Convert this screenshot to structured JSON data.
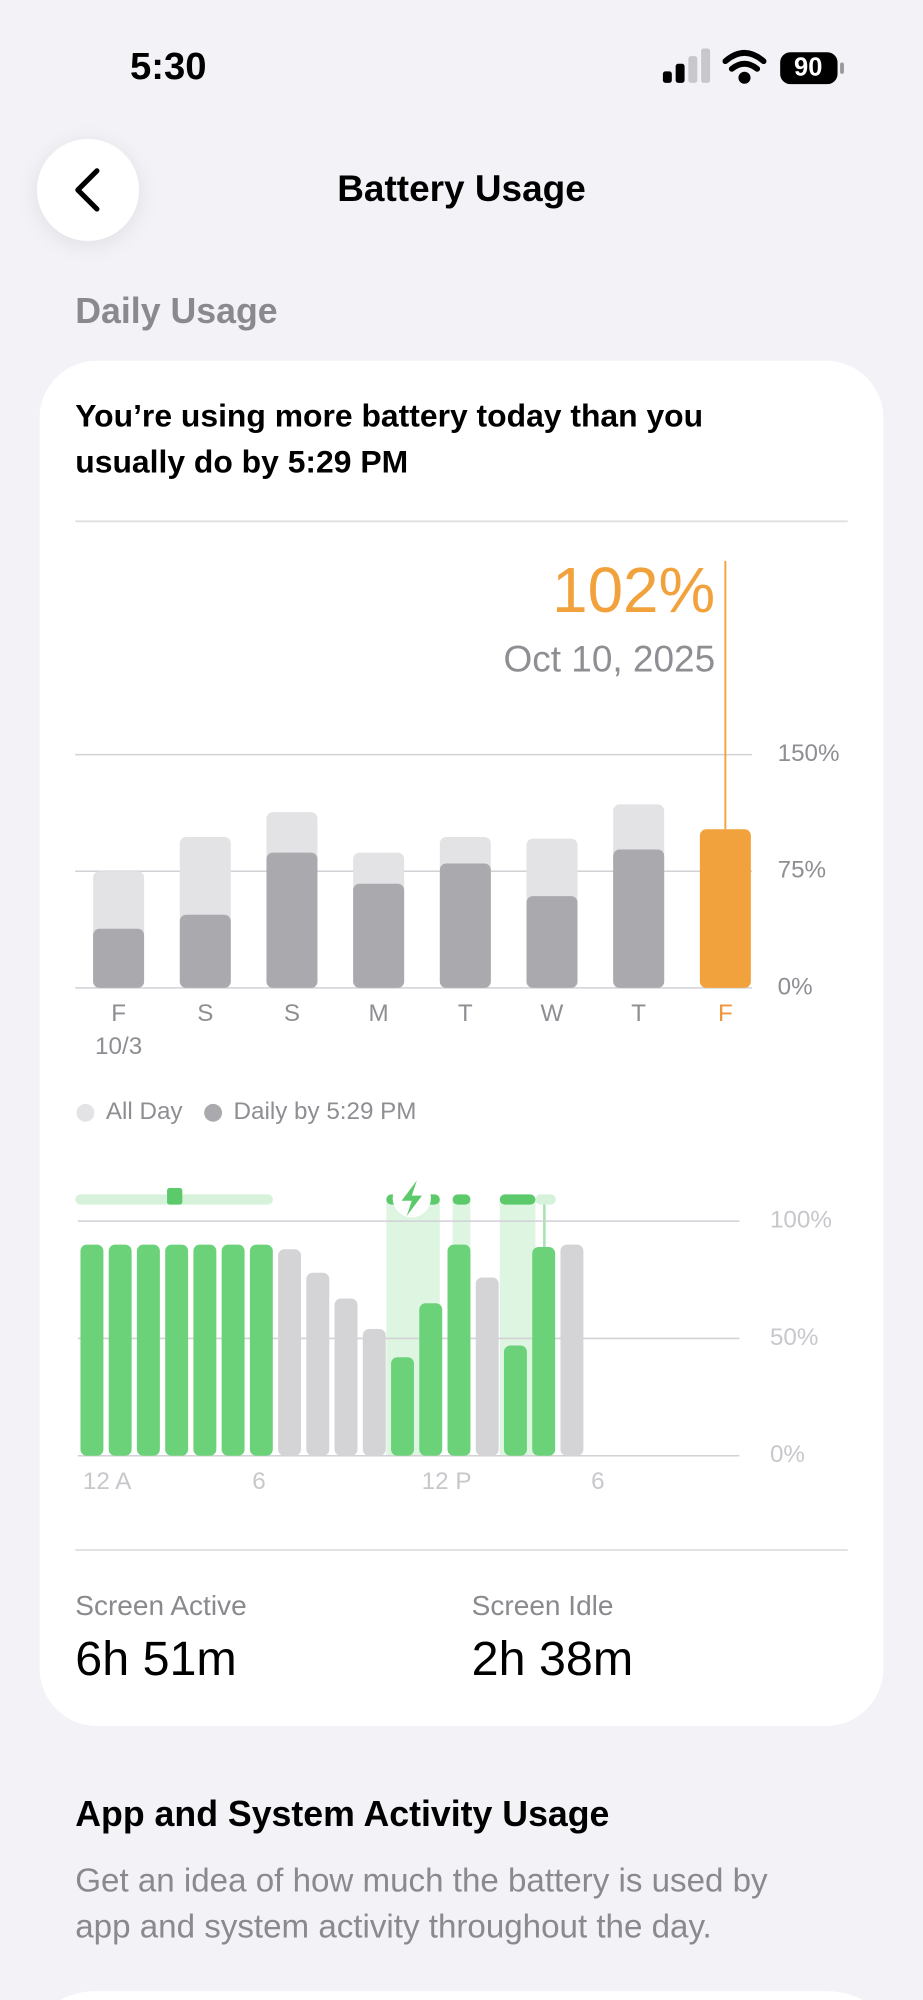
{
  "status_bar": {
    "time": "5:30",
    "battery": "90"
  },
  "header": {
    "title": "Battery Usage"
  },
  "section": "Daily Usage",
  "message": [
    "You’re using more battery today than you",
    "usually do by 5:29 PM"
  ],
  "chart_data": [
    {
      "type": "bar",
      "categories": [
        "F",
        "S",
        "S",
        "M",
        "T",
        "W",
        "T",
        "F"
      ],
      "category_sublabels": [
        "10/3",
        null,
        null,
        null,
        null,
        null,
        null,
        null
      ],
      "category_colors": [
        "#8e8e93",
        "#8e8e93",
        "#8e8e93",
        "#8e8e93",
        "#8e8e93",
        "#8e8e93",
        "#8e8e93",
        "#f0953a"
      ],
      "series": [
        {
          "name": "All Day",
          "color": "#e3e3e6",
          "values": [
            75,
            97,
            113,
            87,
            97,
            96,
            118,
            null
          ]
        },
        {
          "name": "Daily by 5:29 PM",
          "color": "#a9a9ae",
          "colors": [
            "#a9a9ae",
            "#a9a9ae",
            "#a9a9ae",
            "#a9a9ae",
            "#a9a9ae",
            "#a9a9ae",
            "#a9a9ae",
            "#f2a23c"
          ],
          "values": [
            38,
            47,
            87,
            67,
            80,
            59,
            89,
            102
          ],
          "value_labels": [
            null,
            null,
            null,
            null,
            null,
            null,
            null,
            "102%"
          ]
        }
      ],
      "selected_date": "Oct 10, 2025",
      "ylim": [
        0,
        150
      ],
      "yticks": [
        {
          "value": 0,
          "label": "0%"
        },
        {
          "value": 75,
          "label": "75%"
        },
        {
          "value": 150,
          "label": "150%"
        }
      ],
      "grid": true
    },
    {
      "type": "bar",
      "categories": [
        "12 A",
        null,
        null,
        null,
        null,
        null,
        "6",
        null,
        null,
        null,
        null,
        null,
        "12 P",
        null,
        null,
        null,
        null,
        null,
        "6",
        null,
        null,
        null,
        null,
        null
      ],
      "series": [
        {
          "color": "#6cd27a",
          "colors": [
            "#6cd27a",
            "#6cd27a",
            "#6cd27a",
            "#6cd27a",
            "#6cd27a",
            "#6cd27a",
            "#6cd27a",
            "#d4d4d7",
            "#d4d4d7",
            "#d4d4d7",
            "#d4d4d7",
            "#6cd27a",
            "#6cd27a",
            "#6cd27a",
            "#d4d4d7",
            "#6cd27a",
            "#6cd27a",
            "#d4d4d7",
            null,
            null,
            null,
            null,
            null,
            null
          ],
          "values": [
            90,
            90,
            90,
            90,
            90,
            90,
            90,
            88,
            78,
            67,
            54,
            42,
            65,
            90,
            76,
            47,
            89,
            90,
            null,
            null,
            null,
            null,
            null,
            null
          ]
        }
      ],
      "ylim": [
        0,
        100
      ],
      "yticks": [
        {
          "value": 0,
          "label": "0%"
        },
        {
          "value": 50,
          "label": "50%"
        },
        {
          "value": 100,
          "label": "100%"
        }
      ],
      "grid": true
    }
  ],
  "stats": [
    {
      "label": "Screen Active",
      "value": "6h 51m"
    },
    {
      "label": "Screen Idle",
      "value": "2h 38m"
    }
  ],
  "activity": {
    "title": "App and System Activity Usage",
    "description": [
      "Get an idea of how much the battery is used by",
      "app and system activity throughout the day."
    ]
  }
}
